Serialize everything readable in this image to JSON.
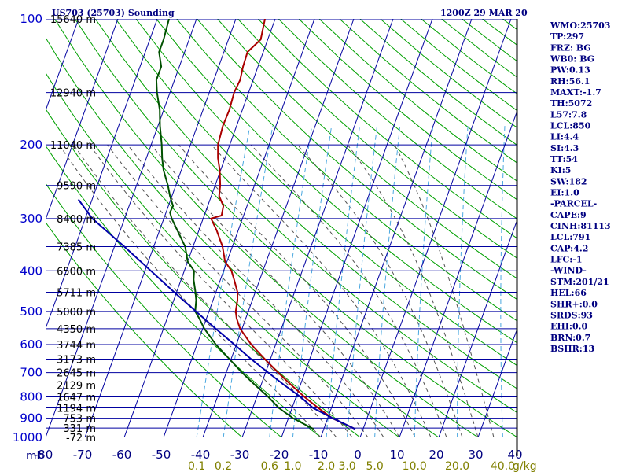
{
  "chart_data": {
    "type": "skew-t sounding",
    "title_left": "US703 (25703) Sounding",
    "title_right": "1200Z 29 MAR 20",
    "temperature_axis": {
      "unit_label": "mb",
      "ticks": [
        "-80",
        "-70",
        "-60",
        "-50",
        "-40",
        "-30",
        "-20",
        "-10",
        "0",
        "10",
        "20",
        "30",
        "40"
      ],
      "range_c": [
        -80,
        40
      ]
    },
    "pressure_axis": {
      "ticks": [
        100,
        200,
        300,
        400,
        500,
        600,
        700,
        800,
        900,
        1000
      ],
      "range_mb": [
        100,
        1000
      ],
      "scale": "log"
    },
    "height_labels": [
      {
        "p": 100,
        "label": "15640 m"
      },
      {
        "p": 150,
        "label": "12940 m"
      },
      {
        "p": 200,
        "label": "11040 m"
      },
      {
        "p": 250,
        "label": "9590 m"
      },
      {
        "p": 300,
        "label": "8400 m"
      },
      {
        "p": 350,
        "label": "7385 m"
      },
      {
        "p": 400,
        "label": "6500 m"
      },
      {
        "p": 450,
        "label": "5711 m"
      },
      {
        "p": 500,
        "label": "5000 m"
      },
      {
        "p": 550,
        "label": "4350 m"
      },
      {
        "p": 600,
        "label": "3744 m"
      },
      {
        "p": 650,
        "label": "3173 m"
      },
      {
        "p": 700,
        "label": "2645 m"
      },
      {
        "p": 750,
        "label": "2129 m"
      },
      {
        "p": 800,
        "label": "1647 m"
      },
      {
        "p": 850,
        "label": "1194 m"
      },
      {
        "p": 900,
        "label": "753 m"
      },
      {
        "p": 950,
        "label": "331 m"
      },
      {
        "p": 1000,
        "label": "-72 m"
      }
    ],
    "mixing_ratio_labels": [
      "0.1",
      "0.2",
      "0.6",
      "1.0",
      "2.0",
      "3.0",
      "5.0",
      "10.0",
      "20.0",
      "40.0"
    ],
    "mixing_ratio_unit": "g/kg",
    "series": [
      {
        "key": "temperature",
        "color": "#aa0000",
        "points": [
          [
            955,
            -2
          ],
          [
            900,
            -8.8
          ],
          [
            850,
            -13.4
          ],
          [
            800,
            -17.9
          ],
          [
            750,
            -22.3
          ],
          [
            700,
            -26.8
          ],
          [
            650,
            -31.4
          ],
          [
            600,
            -36.2
          ],
          [
            550,
            -40.5
          ],
          [
            520,
            -42.3
          ],
          [
            500,
            -43.2
          ],
          [
            470,
            -43.8
          ],
          [
            450,
            -44.5
          ],
          [
            420,
            -46.5
          ],
          [
            400,
            -48
          ],
          [
            380,
            -50.5
          ],
          [
            350,
            -52.5
          ],
          [
            320,
            -55.5
          ],
          [
            300,
            -58
          ],
          [
            295,
            -55.6
          ],
          [
            280,
            -56
          ],
          [
            265,
            -58
          ],
          [
            250,
            -58.7
          ],
          [
            230,
            -60.2
          ],
          [
            215,
            -61.8
          ],
          [
            200,
            -63
          ],
          [
            180,
            -63.5
          ],
          [
            165,
            -63.3
          ],
          [
            150,
            -63.7
          ],
          [
            140,
            -63.3
          ],
          [
            130,
            -63.8
          ],
          [
            120,
            -64
          ],
          [
            112,
            -61.8
          ],
          [
            100,
            -62.6
          ]
        ]
      },
      {
        "key": "dewpoint",
        "color": "#005000",
        "points": [
          [
            955,
            -12.6
          ],
          [
            900,
            -18.8
          ],
          [
            850,
            -23.4
          ],
          [
            800,
            -27.1
          ],
          [
            750,
            -31.5
          ],
          [
            700,
            -36
          ],
          [
            650,
            -40.4
          ],
          [
            600,
            -45.2
          ],
          [
            550,
            -49.6
          ],
          [
            520,
            -51.8
          ],
          [
            500,
            -53.5
          ],
          [
            470,
            -54.3
          ],
          [
            450,
            -55.2
          ],
          [
            420,
            -56.8
          ],
          [
            400,
            -57.5
          ],
          [
            380,
            -60
          ],
          [
            350,
            -62
          ],
          [
            320,
            -65.5
          ],
          [
            300,
            -68
          ],
          [
            290,
            -69
          ],
          [
            280,
            -68.8
          ],
          [
            265,
            -70.5
          ],
          [
            250,
            -72
          ],
          [
            230,
            -74.5
          ],
          [
            215,
            -76
          ],
          [
            200,
            -77.3
          ],
          [
            180,
            -79.5
          ],
          [
            165,
            -81
          ],
          [
            150,
            -83.3
          ],
          [
            140,
            -84.6
          ],
          [
            130,
            -84.6
          ],
          [
            120,
            -86.5
          ],
          [
            112,
            -86.5
          ],
          [
            100,
            -87
          ]
        ]
      },
      {
        "key": "parcel",
        "color": "#0000aa",
        "points": [
          [
            955,
            -2
          ],
          [
            900,
            -8.7
          ],
          [
            850,
            -14.7
          ],
          [
            800,
            -18.9
          ],
          [
            750,
            -24.1
          ],
          [
            700,
            -29.3
          ],
          [
            650,
            -34.9
          ],
          [
            600,
            -40.5
          ],
          [
            550,
            -46.7
          ],
          [
            500,
            -53.3
          ],
          [
            450,
            -60.6
          ],
          [
            400,
            -68.5
          ],
          [
            350,
            -77.5
          ],
          [
            300,
            -88.2
          ],
          [
            270,
            -93.5
          ]
        ]
      }
    ],
    "indices": [
      "WMO:25703",
      "TP:297",
      "FRZ: BG",
      "WB0: BG",
      "PW:0.13",
      "RH:56.1",
      "MAXT:-1.7",
      "TH:5072",
      "L57:7.8",
      "LCL:850",
      "LI:4.4",
      "SI:4.3",
      "TT:54",
      "KI:5",
      "SW:182",
      "EI:1.0",
      "-PARCEL-",
      "CAPE:9",
      "CINH:81113",
      "LCL:791",
      "CAP:4.2",
      "LFC:-1",
      "-WIND-",
      "STM:201/21",
      "HEL:66",
      "SHR+:0.0",
      "SRDS:93",
      "EHI:0.0",
      "BRN:0.7",
      "BSHR:13"
    ],
    "colors": {
      "isobar": "#0000a0",
      "isotherm": "#0000a0",
      "dry_adiabat": "#00a000",
      "moist_adiabat": "#505050",
      "mixing_ratio": "#4aa8e0"
    }
  }
}
